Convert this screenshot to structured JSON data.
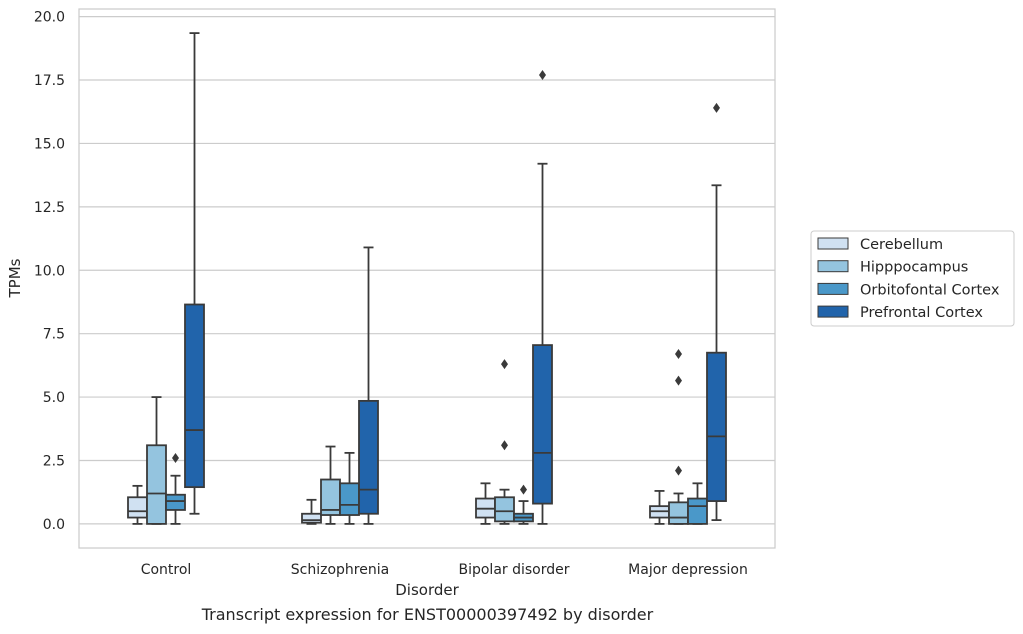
{
  "caption": "Transcript expression for ENST00000397492 by disorder",
  "chart_data": {
    "type": "boxplot",
    "xlabel": "Disorder",
    "ylabel": "TPMs",
    "ylim": [
      -0.95,
      20.3
    ],
    "yticks": [
      0.0,
      2.5,
      5.0,
      7.5,
      10.0,
      12.5,
      15.0,
      17.5,
      20.0
    ],
    "ytick_labels": [
      "0.0",
      "2.5",
      "5.0",
      "7.5",
      "10.0",
      "12.5",
      "15.0",
      "17.5",
      "20.0"
    ],
    "grid": true,
    "legend_position": "right-center",
    "categories": [
      "Control",
      "Schizophrenia",
      "Bipolar disorder",
      "Major depression"
    ],
    "series": [
      {
        "name": "Cerebellum",
        "color": "#d0e1f2",
        "boxes": [
          {
            "whislo": 0.0,
            "q1": 0.25,
            "med": 0.5,
            "q3": 1.05,
            "whishi": 1.5,
            "fliers": []
          },
          {
            "whislo": 0.0,
            "q1": 0.05,
            "med": 0.15,
            "q3": 0.4,
            "whishi": 0.95,
            "fliers": []
          },
          {
            "whislo": 0.0,
            "q1": 0.25,
            "med": 0.6,
            "q3": 1.0,
            "whishi": 1.6,
            "fliers": []
          },
          {
            "whislo": 0.0,
            "q1": 0.25,
            "med": 0.5,
            "q3": 0.7,
            "whishi": 1.3,
            "fliers": []
          }
        ]
      },
      {
        "name": "Hipppocampus",
        "color": "#94c4df",
        "boxes": [
          {
            "whislo": 0.0,
            "q1": 0.0,
            "med": 1.2,
            "q3": 3.1,
            "whishi": 5.0,
            "fliers": []
          },
          {
            "whislo": 0.0,
            "q1": 0.35,
            "med": 0.55,
            "q3": 1.75,
            "whishi": 3.05,
            "fliers": []
          },
          {
            "whislo": 0.0,
            "q1": 0.1,
            "med": 0.5,
            "q3": 1.05,
            "whishi": 1.35,
            "fliers": [
              3.1,
              6.3
            ]
          },
          {
            "whislo": 0.0,
            "q1": 0.0,
            "med": 0.25,
            "q3": 0.85,
            "whishi": 1.2,
            "fliers": [
              2.1,
              5.65,
              6.7
            ]
          }
        ]
      },
      {
        "name": "Orbitofontal Cortex",
        "color": "#4a98c9",
        "boxes": [
          {
            "whislo": 0.0,
            "q1": 0.55,
            "med": 0.9,
            "q3": 1.15,
            "whishi": 1.9,
            "fliers": [
              2.6
            ]
          },
          {
            "whislo": 0.0,
            "q1": 0.35,
            "med": 0.75,
            "q3": 1.6,
            "whishi": 2.8,
            "fliers": []
          },
          {
            "whislo": 0.0,
            "q1": 0.1,
            "med": 0.25,
            "q3": 0.4,
            "whishi": 0.9,
            "fliers": [
              1.35
            ]
          },
          {
            "whislo": 0.0,
            "q1": 0.0,
            "med": 0.7,
            "q3": 1.0,
            "whishi": 1.6,
            "fliers": []
          }
        ]
      },
      {
        "name": "Prefrontal Cortex",
        "color": "#2164ab",
        "boxes": [
          {
            "whislo": 0.4,
            "q1": 1.45,
            "med": 3.7,
            "q3": 8.65,
            "whishi": 19.35,
            "fliers": []
          },
          {
            "whislo": 0.0,
            "q1": 0.4,
            "med": 1.35,
            "q3": 4.85,
            "whishi": 10.9,
            "fliers": []
          },
          {
            "whislo": 0.0,
            "q1": 0.8,
            "med": 2.8,
            "q3": 7.05,
            "whishi": 14.2,
            "fliers": [
              17.7
            ]
          },
          {
            "whislo": 0.15,
            "q1": 0.9,
            "med": 3.45,
            "q3": 6.75,
            "whishi": 13.35,
            "fliers": [
              16.4
            ]
          }
        ]
      }
    ]
  }
}
